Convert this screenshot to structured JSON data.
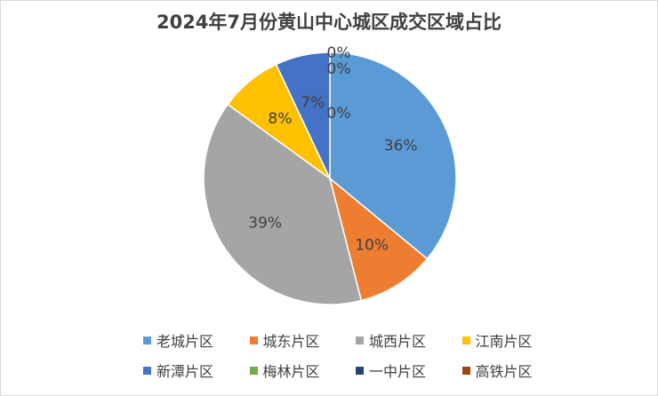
{
  "chart_data": {
    "type": "pie",
    "title": "2024年7月份黄山中心城区成交区域占比",
    "categories": [
      "老城片区",
      "城东片区",
      "城西片区",
      "江南片区",
      "新潭片区",
      "梅林片区",
      "一中片区",
      "高铁片区"
    ],
    "values": [
      36,
      10,
      39,
      8,
      7,
      0,
      0,
      0
    ],
    "labels": [
      "36%",
      "10%",
      "39%",
      "8%",
      "7%",
      "0%",
      "0%",
      "0%"
    ],
    "colors": [
      "#5B9BD5",
      "#ED7D31",
      "#A5A5A5",
      "#FFC000",
      "#4472C4",
      "#70AD47",
      "#264478",
      "#9E480E"
    ],
    "legend_position": "bottom"
  }
}
